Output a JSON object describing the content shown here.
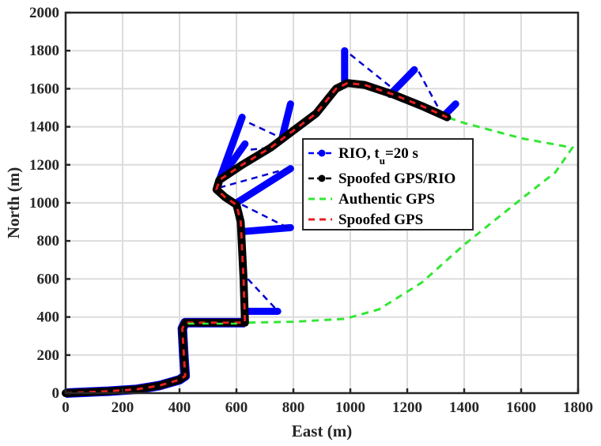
{
  "chart_data": {
    "type": "line",
    "title": "",
    "xlabel": "East (m)",
    "ylabel": "North (m)",
    "xlim": [
      0,
      1800
    ],
    "ylim": [
      0,
      2000
    ],
    "xticks": [
      0,
      200,
      400,
      600,
      800,
      1000,
      1200,
      1400,
      1600,
      1800
    ],
    "yticks": [
      0,
      200,
      400,
      600,
      800,
      1000,
      1200,
      1400,
      1600,
      1800,
      2000
    ],
    "grid": true,
    "legend_position": "inside-center-right",
    "legend": [
      {
        "label": "RIO, t",
        "subscript": "u",
        "suffix": "=20 s",
        "color": "#0000ff",
        "style": "dashed-with-markers"
      },
      {
        "label": "Spoofed GPS/RIO",
        "color": "#000000",
        "style": "dashed-with-markers"
      },
      {
        "label": "Authentic GPS",
        "color": "#33e633",
        "style": "dashed"
      },
      {
        "label": "Spoofed GPS",
        "color": "#e62020",
        "style": "dashed"
      }
    ],
    "series": [
      {
        "name": "Spoofed GPS/RIO",
        "color": "#000000",
        "points": [
          [
            0,
            0
          ],
          [
            150,
            10
          ],
          [
            250,
            20
          ],
          [
            330,
            40
          ],
          [
            400,
            70
          ],
          [
            420,
            90
          ],
          [
            415,
            200
          ],
          [
            410,
            340
          ],
          [
            420,
            370
          ],
          [
            630,
            370
          ],
          [
            625,
            600
          ],
          [
            615,
            900
          ],
          [
            600,
            990
          ],
          [
            560,
            1030
          ],
          [
            530,
            1070
          ],
          [
            540,
            1120
          ],
          [
            620,
            1200
          ],
          [
            720,
            1290
          ],
          [
            800,
            1380
          ],
          [
            880,
            1470
          ],
          [
            950,
            1600
          ],
          [
            990,
            1630
          ],
          [
            1050,
            1620
          ],
          [
            1150,
            1570
          ],
          [
            1250,
            1510
          ],
          [
            1340,
            1450
          ]
        ]
      },
      {
        "name": "Spoofed GPS",
        "color": "#e62020",
        "points": [
          [
            0,
            0
          ],
          [
            150,
            10
          ],
          [
            250,
            20
          ],
          [
            330,
            40
          ],
          [
            400,
            70
          ],
          [
            420,
            90
          ],
          [
            415,
            200
          ],
          [
            410,
            340
          ],
          [
            420,
            370
          ],
          [
            630,
            370
          ],
          [
            625,
            600
          ],
          [
            615,
            900
          ],
          [
            600,
            990
          ],
          [
            560,
            1030
          ],
          [
            530,
            1070
          ],
          [
            540,
            1120
          ],
          [
            620,
            1200
          ],
          [
            720,
            1290
          ],
          [
            800,
            1380
          ],
          [
            880,
            1470
          ],
          [
            950,
            1600
          ],
          [
            990,
            1630
          ],
          [
            1050,
            1620
          ],
          [
            1150,
            1570
          ],
          [
            1250,
            1510
          ],
          [
            1340,
            1450
          ]
        ]
      },
      {
        "name": "Authentic GPS",
        "color": "#33e633",
        "points": [
          [
            420,
            370
          ],
          [
            630,
            370
          ],
          [
            800,
            375
          ],
          [
            980,
            390
          ],
          [
            1100,
            440
          ],
          [
            1250,
            580
          ],
          [
            1400,
            780
          ],
          [
            1600,
            1020
          ],
          [
            1720,
            1160
          ],
          [
            1780,
            1290
          ],
          [
            1600,
            1340
          ],
          [
            1400,
            1420
          ],
          [
            1340,
            1450
          ]
        ]
      },
      {
        "name": "RIO, t_u=20 s",
        "color": "#0000ff",
        "branches": [
          {
            "from": [
              630,
              430
            ],
            "to": [
              745,
              430
            ],
            "connector_from": [
              630,
              600
            ]
          },
          {
            "from": [
              630,
              850
            ],
            "to": [
              790,
              870
            ],
            "connector_from": [
              600,
              990
            ]
          },
          {
            "from": [
              600,
              1000
            ],
            "to": [
              790,
              1180
            ],
            "connector_from": [
              540,
              1080
            ]
          },
          {
            "from": [
              540,
              1120
            ],
            "to": [
              630,
              1310
            ],
            "connector_from": [
              630,
              1280
            ]
          },
          {
            "from": [
              540,
              1120
            ],
            "to": [
              620,
              1450
            ],
            "connector_from": [
              620,
              1450
            ]
          },
          {
            "from": [
              760,
              1340
            ],
            "to": [
              790,
              1520
            ],
            "connector_from": [
              790,
              1520
            ]
          },
          {
            "from": [
              980,
              1630
            ],
            "to": [
              980,
              1800
            ],
            "connector_from": [
              980,
              1800
            ]
          },
          {
            "from": [
              1140,
              1570
            ],
            "to": [
              1225,
              1700
            ],
            "connector_from": [
              1225,
              1700
            ]
          },
          {
            "from": [
              1330,
              1460
            ],
            "to": [
              1370,
              1520
            ],
            "connector_from": [
              1370,
              1520
            ]
          }
        ],
        "dashed_connectors": [
          [
            [
              1000,
              1780
            ],
            [
              1150,
              1600
            ]
          ],
          [
            [
              1240,
              1690
            ],
            [
              1320,
              1470
            ]
          ],
          [
            [
              645,
              1420
            ],
            [
              760,
              1340
            ]
          ],
          [
            [
              650,
              1280
            ],
            [
              720,
              1290
            ]
          ],
          [
            [
              540,
              1080
            ],
            [
              780,
              1180
            ]
          ],
          [
            [
              620,
              990
            ],
            [
              780,
              870
            ]
          ],
          [
            [
              640,
              600
            ],
            [
              740,
              440
            ]
          ]
        ]
      }
    ]
  },
  "axes": {
    "x_label": "East (m)",
    "y_label": "North (m)",
    "x_ticks": [
      "0",
      "200",
      "400",
      "600",
      "800",
      "1000",
      "1200",
      "1400",
      "1600",
      "1800"
    ],
    "y_ticks": [
      "0",
      "200",
      "400",
      "600",
      "800",
      "1000",
      "1200",
      "1400",
      "1600",
      "1800",
      "2000"
    ]
  },
  "legend": {
    "items": [
      {
        "label": "RIO, t",
        "sub": "u",
        "suffix": "=20 s"
      },
      {
        "label": "Spoofed GPS/RIO"
      },
      {
        "label": "Authentic GPS"
      },
      {
        "label": "Spoofed GPS"
      }
    ]
  },
  "colors": {
    "rio": "#0000ff",
    "spoofed_rio": "#000000",
    "authentic": "#33e633",
    "spoofed": "#e62020",
    "grid": "#dcdcdc",
    "axis": "#262626"
  }
}
